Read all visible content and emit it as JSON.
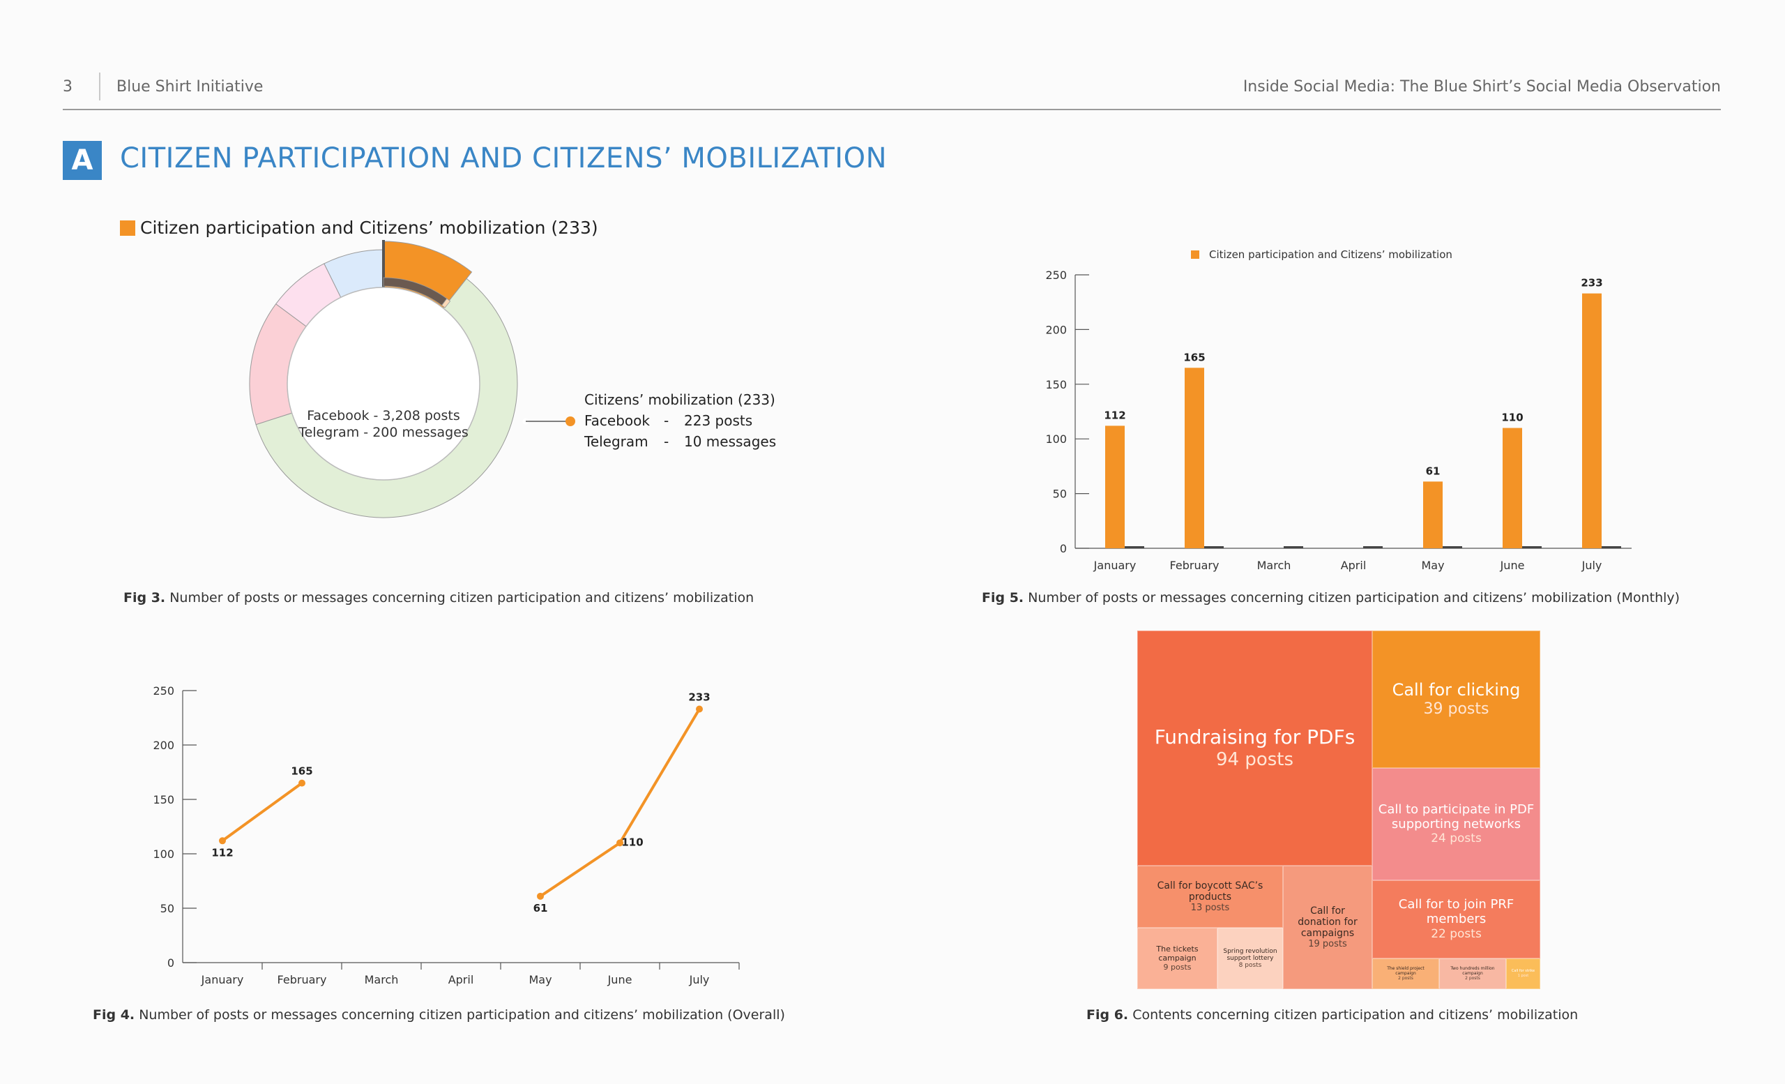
{
  "header": {
    "page_number": "3",
    "org": "Blue Shirt Initiative",
    "title": "Inside Social Media: The Blue Shirt’s Social Media Observation"
  },
  "section": {
    "badge": "A",
    "title": "CITIZEN PARTICIPATION AND CITIZENS’ MOBILIZATION",
    "legend_label": "Citizen participation and Citizens’ mobilization (233)",
    "legend_color": "#f39326"
  },
  "fig3": {
    "center_line1": "Facebook - 3,208 posts",
    "center_line2": "Telegram - 200 messages",
    "callout_title": "Citizens’ mobilization (233)",
    "callout_fb_label": "Facebook",
    "callout_fb_dash": "-",
    "callout_fb_value": "223 posts",
    "callout_tg_label": "Telegram",
    "callout_tg_dash": "-",
    "callout_tg_value": "10 messages",
    "caption_bold": "Fig 3.",
    "caption_text": " Number of posts or messages concerning citizen participation and citizens’ mobilization"
  },
  "fig4": {
    "caption_bold": "Fig 4.",
    "caption_text": " Number of posts or messages concerning citizen participation and citizens’ mobilization (Overall)"
  },
  "fig5": {
    "caption_bold": "Fig 5.",
    "caption_text": " Number of posts or messages concerning citizen participation and citizens’ mobilization (Monthly)"
  },
  "fig6": {
    "caption_bold": "Fig 6.",
    "caption_text": " Contents concerning citizen participation and citizens’ mobilization"
  },
  "chart_data": [
    {
      "type": "pie",
      "name": "fig3",
      "outer_ring": [
        {
          "label": "Citizens’ mobilization (233)",
          "value": 233,
          "color": "#f39326"
        },
        {
          "label": "",
          "value": 1300,
          "color": "#e2efd7"
        },
        {
          "label": "",
          "value": 330,
          "color": "#fbd0d6"
        },
        {
          "label": "",
          "value": 165,
          "color": "#fde0ee"
        },
        {
          "label": "",
          "value": 160,
          "color": "#dbeafb"
        }
      ],
      "inner_ring": [
        {
          "label": "Facebook",
          "value": 223,
          "color": "#6b5a50"
        },
        {
          "label": "Telegram",
          "value": 10,
          "color": "#fbd9b8"
        }
      ],
      "total_facebook": 3208,
      "total_telegram": 200
    },
    {
      "type": "line",
      "name": "fig4",
      "categories": [
        "January",
        "February",
        "March",
        "April",
        "May",
        "June",
        "July"
      ],
      "values": [
        112,
        165,
        null,
        null,
        61,
        110,
        233
      ],
      "labels": [
        "112",
        "165",
        "",
        "",
        "61",
        "110",
        "233"
      ],
      "ylim": [
        0,
        250
      ],
      "yticks": [
        0,
        50,
        100,
        150,
        200,
        250
      ],
      "color": "#f39326"
    },
    {
      "type": "bar",
      "name": "fig5",
      "legend": "Citizen participation and Citizens’ mobilization",
      "categories": [
        "January",
        "February",
        "March",
        "April",
        "May",
        "June",
        "July"
      ],
      "values": [
        112,
        165,
        0,
        0,
        61,
        110,
        233
      ],
      "labels": [
        "112",
        "165",
        "",
        "",
        "61",
        "110",
        "233"
      ],
      "ylim": [
        0,
        250
      ],
      "yticks": [
        0,
        50,
        100,
        150,
        200,
        250
      ],
      "color": "#f39326"
    },
    {
      "type": "treemap",
      "name": "fig6",
      "items": [
        {
          "title": "Fundraising for PDFs",
          "posts": "94 posts",
          "value": 94,
          "color": "#f26b45"
        },
        {
          "title": "Call for clicking",
          "posts": "39 posts",
          "value": 39,
          "color": "#f39326"
        },
        {
          "title": "Call to participate in PDF supporting networks",
          "posts": "24 posts",
          "value": 24,
          "color": "#f38c8c"
        },
        {
          "title": "Call for to join PRF members",
          "posts": "22 posts",
          "value": 22,
          "color": "#f47c5d"
        },
        {
          "title": "Call for boycott SAC’s products",
          "posts": "13 posts",
          "value": 13,
          "color": "#f6906b"
        },
        {
          "title": "Call for donation for campaigns",
          "posts": "19 posts",
          "value": 19,
          "color": "#f59a7d"
        },
        {
          "title": "The tickets campaign",
          "posts": "9 posts",
          "value": 9,
          "color": "#fab196"
        },
        {
          "title": "Spring revolution support lottery",
          "posts": "8 posts",
          "value": 8,
          "color": "#fcd2bf"
        },
        {
          "title": "The shield project campaign",
          "posts": "2 posts",
          "value": 2,
          "color": "#f9b076"
        },
        {
          "title": "Two hundreds million campaign",
          "posts": "2 posts",
          "value": 2,
          "color": "#f8b8a3"
        },
        {
          "title": "Call for strike",
          "posts": "1 post",
          "value": 1,
          "color": "#fbbd59"
        }
      ]
    }
  ]
}
